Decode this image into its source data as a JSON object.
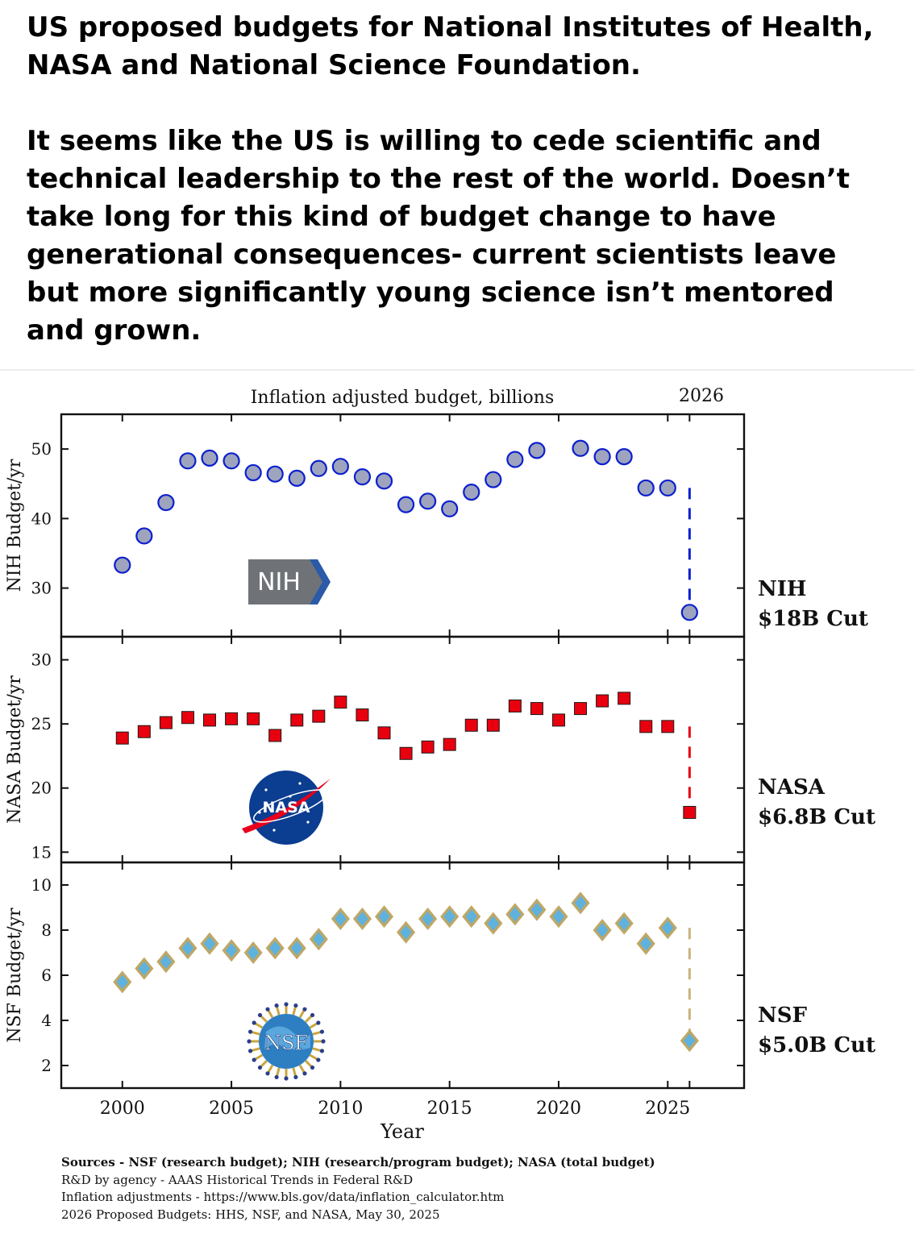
{
  "post": {
    "paragraph1": "US proposed budgets for National Institutes of Health, NASA and National Science Foundation.",
    "paragraph2": "It seems like the US is willing to cede scientific and technical leadership to the rest of the world. Doesn’t take long for this kind of budget change to have generational consequences- current scientists leave but more significantly young science isn’t mentored and grown."
  },
  "figure": {
    "top_title": "Inflation adjusted budget, billions",
    "top_year": "2026",
    "xlabel": "Year",
    "sources": [
      "Sources - NSF (research budget); NIH (research/program budget); NASA (total budget)",
      "R&D by agency - AAAS Historical Trends in Federal R&D",
      "Inflation adjustments - https://www.bls.gov/data/inflation_calculator.htm",
      "2026 Proposed Budgets: HHS, NSF, and NASA, May 30, 2025"
    ],
    "logos": {
      "nih": "NIH",
      "nasa": "NASA",
      "nsf": "NSF"
    }
  },
  "chart_data": [
    {
      "type": "scatter",
      "title": "Inflation adjusted budget, billions",
      "ylabel": "NIH Budget/yr",
      "xlabel": "",
      "xlim": [
        1997.2,
        2028.5
      ],
      "ylim": [
        23,
        55
      ],
      "yticks": [
        30,
        40,
        50
      ],
      "marker": "circle",
      "color": "#0b1fcf",
      "fill": "#9ea4bd",
      "x": [
        2000,
        2001,
        2002,
        2003,
        2004,
        2005,
        2006,
        2007,
        2008,
        2009,
        2010,
        2011,
        2012,
        2013,
        2014,
        2015,
        2016,
        2017,
        2018,
        2019,
        2021,
        2022,
        2023,
        2024,
        2025
      ],
      "y": [
        33.3,
        37.5,
        42.3,
        48.3,
        48.7,
        48.3,
        46.6,
        46.4,
        45.8,
        47.2,
        47.5,
        46.0,
        45.4,
        42.0,
        42.5,
        41.4,
        43.8,
        45.6,
        48.5,
        49.8,
        50.1,
        48.9,
        48.9,
        44.4,
        44.4
      ],
      "proposed": {
        "x": 2026,
        "y": 26.5,
        "from": 44.4
      },
      "annotation": [
        "NIH",
        "$18B Cut"
      ]
    },
    {
      "type": "scatter",
      "ylabel": "NASA Budget/yr",
      "xlim": [
        1997.2,
        2028.5
      ],
      "ylim": [
        14.2,
        31.8
      ],
      "yticks": [
        15,
        20,
        25,
        30
      ],
      "marker": "square",
      "color": "#e8000e",
      "x": [
        2000,
        2001,
        2002,
        2003,
        2004,
        2005,
        2006,
        2007,
        2008,
        2009,
        2010,
        2011,
        2012,
        2013,
        2014,
        2015,
        2016,
        2017,
        2018,
        2019,
        2020,
        2021,
        2022,
        2023,
        2024,
        2025
      ],
      "y": [
        23.9,
        24.4,
        25.1,
        25.5,
        25.3,
        25.4,
        25.4,
        24.1,
        25.3,
        25.6,
        26.7,
        25.7,
        24.3,
        22.7,
        23.2,
        23.4,
        24.9,
        24.9,
        26.4,
        26.2,
        25.3,
        26.2,
        26.8,
        27.0,
        24.8,
        24.8
      ],
      "proposed": {
        "x": 2026,
        "y": 18.1,
        "from": 24.8
      },
      "annotation": [
        "NASA",
        "$6.8B Cut"
      ]
    },
    {
      "type": "scatter",
      "ylabel": "NSF Budget/yr",
      "xlim": [
        1997.2,
        2028.5
      ],
      "ylim": [
        1.0,
        11.0
      ],
      "yticks": [
        2,
        4,
        6,
        8,
        10
      ],
      "xticks": [
        2000,
        2005,
        2010,
        2015,
        2020,
        2025
      ],
      "marker": "diamond",
      "color": "#bfa765",
      "fill": "#5fb2dd",
      "x": [
        2000,
        2001,
        2002,
        2003,
        2004,
        2005,
        2006,
        2007,
        2008,
        2009,
        2010,
        2011,
        2012,
        2013,
        2014,
        2015,
        2016,
        2017,
        2018,
        2019,
        2020,
        2021,
        2022,
        2023,
        2024,
        2025
      ],
      "y": [
        5.7,
        6.3,
        6.6,
        7.2,
        7.4,
        7.1,
        7.0,
        7.2,
        7.2,
        7.6,
        8.5,
        8.5,
        8.6,
        7.9,
        8.5,
        8.6,
        8.6,
        8.3,
        8.7,
        8.9,
        8.6,
        9.2,
        8.0,
        8.3,
        7.4,
        8.1
      ],
      "proposed": {
        "x": 2026,
        "y": 3.1,
        "from": 8.1
      },
      "annotation": [
        "NSF",
        "$5.0B Cut"
      ]
    }
  ]
}
